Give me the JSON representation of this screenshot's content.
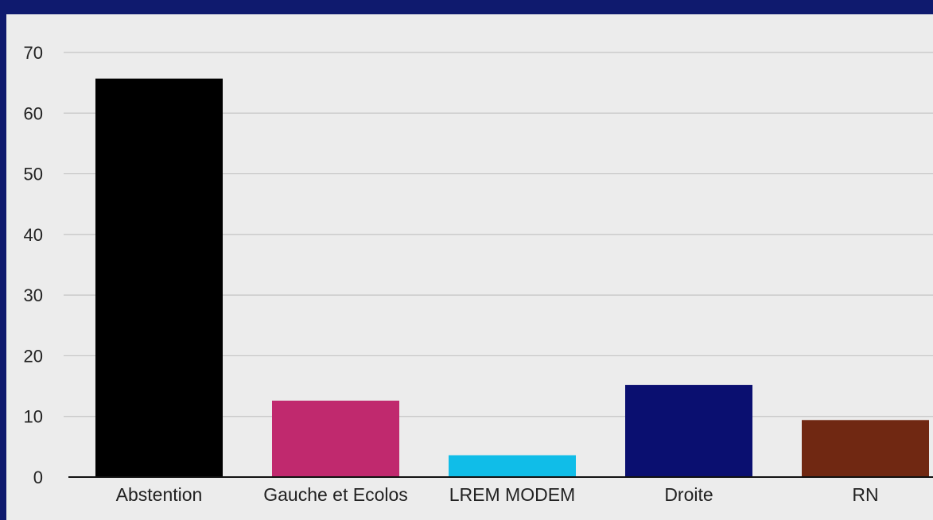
{
  "chart_data": {
    "type": "bar",
    "title": "",
    "xlabel": "",
    "ylabel": "",
    "categories": [
      "Abstention",
      "Gauche et Ecolos",
      "LREM MODEM",
      "Droite",
      "RN"
    ],
    "values": [
      65.7,
      12.6,
      3.6,
      15.2,
      9.4
    ],
    "bar_colors": [
      "#000000",
      "#c0296e",
      "#10bde8",
      "#0a0f70",
      "#702812"
    ],
    "ylim": [
      0,
      70
    ],
    "yticks": [
      0,
      10,
      20,
      30,
      40,
      50,
      60,
      70
    ],
    "grid": true,
    "legend": "none"
  }
}
